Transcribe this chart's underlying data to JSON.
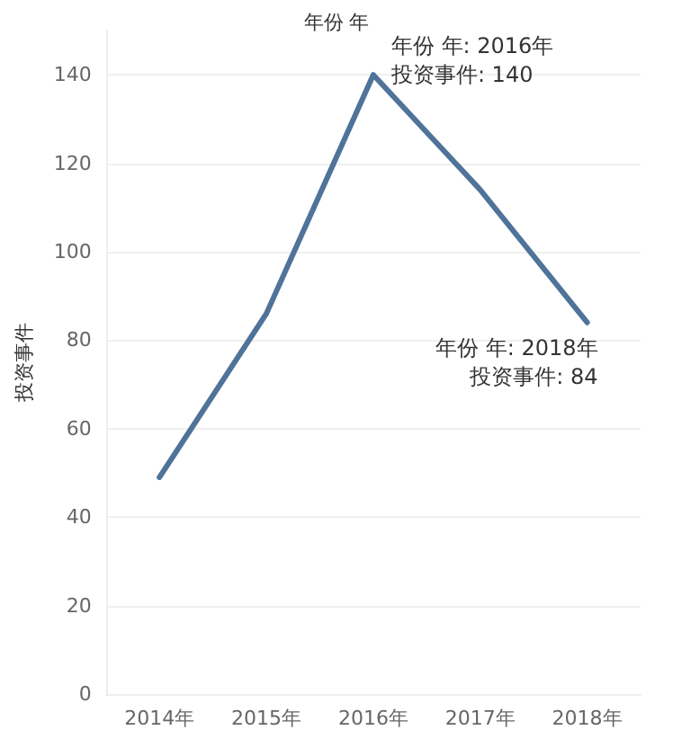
{
  "chart_data": {
    "type": "line",
    "xlabel": "年份 年",
    "ylabel": "投资事件",
    "categories": [
      "2014年",
      "2015年",
      "2016年",
      "2017年",
      "2018年"
    ],
    "series": [
      {
        "color": "#4f7399",
        "values": [
          49,
          86,
          140,
          114,
          84
        ]
      }
    ],
    "ylim": [
      0,
      150
    ],
    "yticks": [
      0,
      20,
      40,
      60,
      80,
      100,
      120,
      140
    ],
    "grid": "y",
    "marker": "none",
    "line_style": "solid",
    "annotations": [
      {
        "text": "年份 年: 2016年",
        "x": "2016年",
        "y": 140
      },
      {
        "text": "投资事件: 140",
        "x": "2016年",
        "y": 140
      },
      {
        "text": "年份 年: 2018年",
        "x": "2018年",
        "y": 84
      },
      {
        "text": "投资事件: 84",
        "x": "2018年",
        "y": 84
      }
    ]
  }
}
